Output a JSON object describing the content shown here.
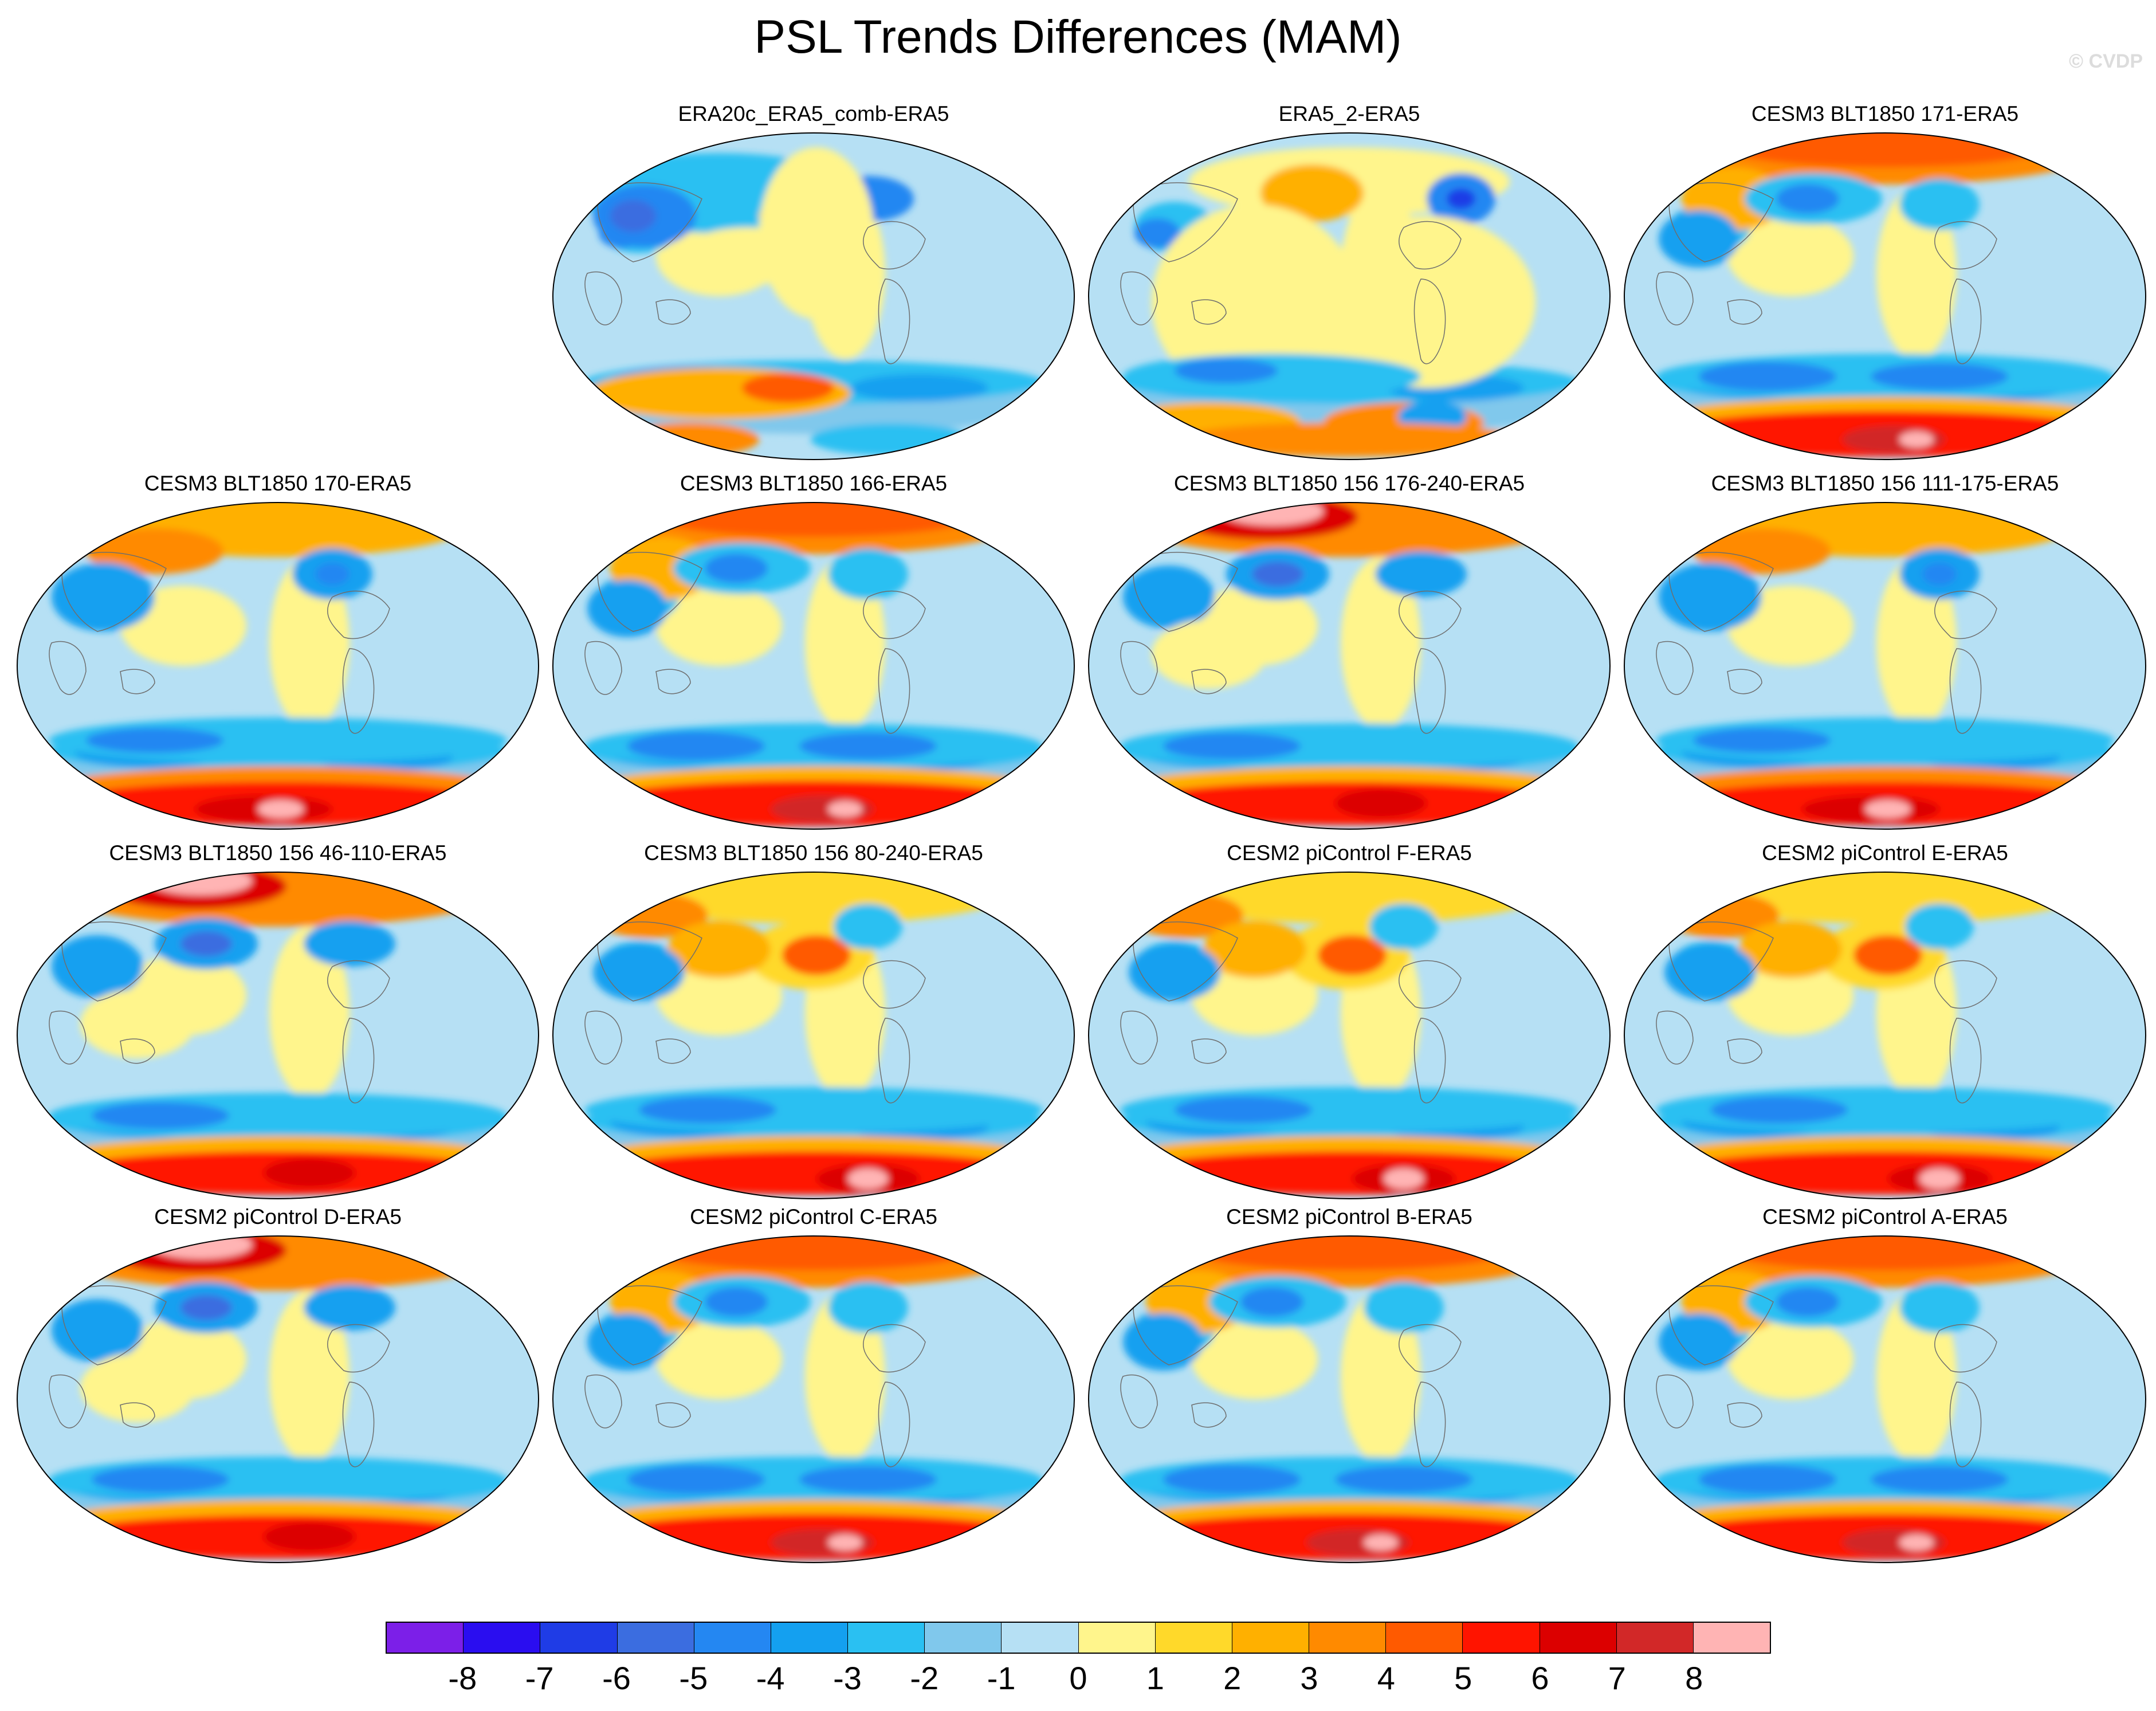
{
  "title": "PSL Trends Differences (MAM)",
  "watermark": "© CVDP",
  "panels": [
    {
      "title": "ERA20c_ERA5_comb-ERA5",
      "pattern": "era20c"
    },
    {
      "title": "ERA5_2-ERA5",
      "pattern": "era5_2"
    },
    {
      "title": "CESM3 BLT1850 171-ERA5",
      "pattern": "model_a"
    },
    {
      "title": "CESM3 BLT1850 170-ERA5",
      "pattern": "model_b"
    },
    {
      "title": "CESM3 BLT1850 166-ERA5",
      "pattern": "model_a"
    },
    {
      "title": "CESM3 BLT1850 156 176-240-ERA5",
      "pattern": "model_c"
    },
    {
      "title": "CESM3 BLT1850 156 111-175-ERA5",
      "pattern": "model_b"
    },
    {
      "title": "CESM3 BLT1850 156 46-110-ERA5",
      "pattern": "model_c"
    },
    {
      "title": "CESM3 BLT1850 156 80-240-ERA5",
      "pattern": "model_d"
    },
    {
      "title": "CESM2 piControl F-ERA5",
      "pattern": "model_d"
    },
    {
      "title": "CESM2 piControl E-ERA5",
      "pattern": "model_d"
    },
    {
      "title": "CESM2 piControl D-ERA5",
      "pattern": "model_c"
    },
    {
      "title": "CESM2 piControl C-ERA5",
      "pattern": "model_a"
    },
    {
      "title": "CESM2 piControl B-ERA5",
      "pattern": "model_a"
    },
    {
      "title": "CESM2 piControl A-ERA5",
      "pattern": "model_a"
    }
  ],
  "colorbar": {
    "labels": [
      "-8",
      "-7",
      "-6",
      "-5",
      "-4",
      "-3",
      "-2",
      "-1",
      "0",
      "1",
      "2",
      "3",
      "4",
      "5",
      "6",
      "7",
      "8"
    ],
    "colors": [
      "#7c1fe8",
      "#2a0df0",
      "#1f3ce6",
      "#3b6de0",
      "#2487f2",
      "#14a0f0",
      "#2ac0f2",
      "#80c8ec",
      "#b6e0f4",
      "#fff58c",
      "#ffd92a",
      "#ffb000",
      "#ff8a00",
      "#ff5a00",
      "#ff1400",
      "#dc0000",
      "#d22828",
      "#ffb4b4"
    ]
  }
}
